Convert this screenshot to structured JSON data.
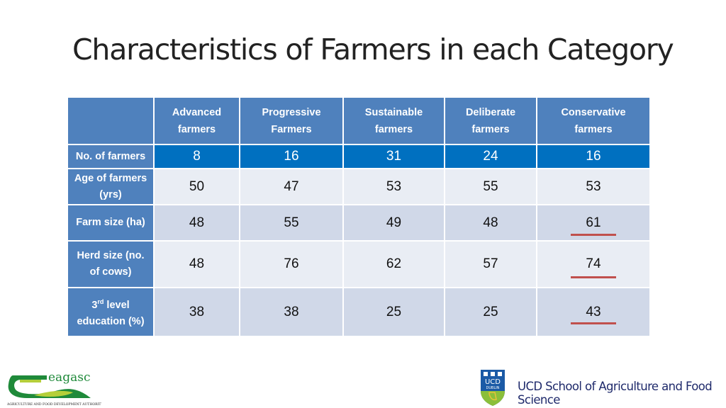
{
  "title": "Characteristics of Farmers in each Category",
  "table": {
    "headers": [
      [
        "Advanced",
        "farmers"
      ],
      [
        "Progressive",
        "Farmers"
      ],
      [
        "Sustainable",
        "farmers"
      ],
      [
        "Deliberate",
        "farmers"
      ],
      [
        "Conservative",
        "farmers"
      ]
    ],
    "rows": [
      {
        "label": [
          "No. of farmers",
          ""
        ],
        "values": [
          "8",
          "16",
          "31",
          "24",
          "16"
        ]
      },
      {
        "label": [
          "Age of farmers",
          "(yrs)"
        ],
        "values": [
          "50",
          "47",
          "53",
          "55",
          "53"
        ]
      },
      {
        "label": [
          "Farm size (ha)",
          ""
        ],
        "values": [
          "48",
          "55",
          "49",
          "48",
          "61"
        ]
      },
      {
        "label": [
          "Herd size (no.",
          "of cows)"
        ],
        "values": [
          "48",
          "76",
          "62",
          "57",
          "74"
        ]
      },
      {
        "label": [
          "3rd level",
          "education (%)"
        ],
        "values": [
          "38",
          "38",
          "25",
          "25",
          "43"
        ]
      }
    ],
    "underlined": [
      "61",
      "74",
      "43"
    ],
    "underline_color": "#C0504D"
  },
  "logos": {
    "teagasc": "teagasc",
    "teagasc_tagline": "Agriculture and Food Development Authority",
    "ucd": "UCD DUBLIN",
    "ucd_school": "UCD School of Agriculture and Food Science"
  }
}
